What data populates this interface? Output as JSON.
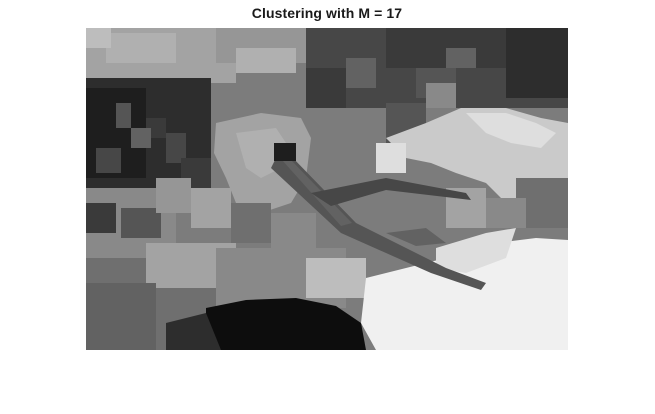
{
  "figure": {
    "title": "Clustering with M = 17",
    "background_color": "#ffffff"
  },
  "image": {
    "kind": "grayscale segmented image",
    "gray_levels": [
      "#0d0d0d",
      "#1e1e1e",
      "#2d2d2d",
      "#3a3a3a",
      "#474747",
      "#555555",
      "#626262",
      "#6f6f6f",
      "#7c7c7c",
      "#898989",
      "#969696",
      "#a3a3a3",
      "#b0b0b0",
      "#bdbdbd",
      "#cacaca",
      "#dedede",
      "#f0f0f0"
    ]
  }
}
